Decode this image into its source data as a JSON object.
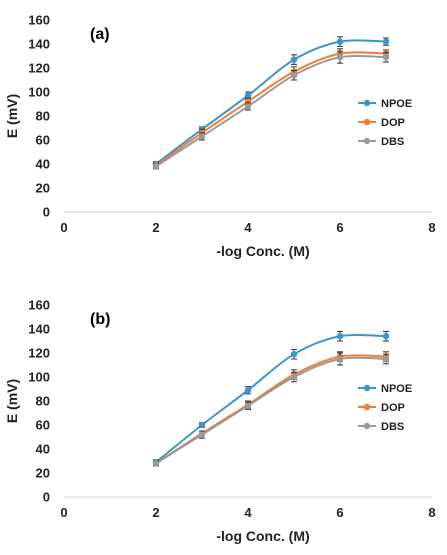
{
  "chart_data": [
    {
      "type": "line",
      "panel_label": "(a)",
      "xlabel": "-log Conc. (M)",
      "ylabel": "E (mV)",
      "xlim": [
        0,
        8
      ],
      "ylim": [
        0,
        160
      ],
      "x_ticks": [
        0,
        2,
        4,
        6,
        8
      ],
      "y_ticks": [
        0,
        20,
        40,
        60,
        80,
        100,
        120,
        140,
        160
      ],
      "grid": false,
      "legend_position": "right",
      "x": [
        2,
        3,
        4,
        5,
        6,
        7
      ],
      "series": [
        {
          "name": "NPOE",
          "color": "#3a95d0",
          "values": [
            40,
            69,
            97,
            127,
            142,
            142
          ],
          "errors": [
            2,
            2,
            3,
            4,
            4,
            3
          ]
        },
        {
          "name": "DOP",
          "color": "#f07d32",
          "values": [
            39,
            66,
            92,
            117,
            132,
            132
          ],
          "errors": [
            2,
            3,
            3,
            4,
            4,
            3
          ]
        },
        {
          "name": "DBS",
          "color": "#9a9a9a",
          "values": [
            38,
            63,
            88,
            114,
            129,
            129
          ],
          "errors": [
            2,
            3,
            3,
            4,
            5,
            4
          ]
        }
      ]
    },
    {
      "type": "line",
      "panel_label": "(b)",
      "xlabel": "-log Conc. (M)",
      "ylabel": "E (mV)",
      "xlim": [
        0,
        8
      ],
      "ylim": [
        0,
        160
      ],
      "x_ticks": [
        0,
        2,
        4,
        6,
        8
      ],
      "y_ticks": [
        0,
        20,
        40,
        60,
        80,
        100,
        120,
        140,
        160
      ],
      "grid": false,
      "legend_position": "right",
      "x": [
        2,
        3,
        4,
        5,
        6,
        7
      ],
      "series": [
        {
          "name": "NPOE",
          "color": "#3a95d0",
          "values": [
            29,
            60,
            89,
            119,
            134,
            134
          ],
          "errors": [
            2,
            2,
            3,
            4,
            4,
            4
          ]
        },
        {
          "name": "DOP",
          "color": "#f07d32",
          "values": [
            28,
            53,
            77,
            102,
            117,
            117
          ],
          "errors": [
            2,
            2,
            3,
            4,
            4,
            4
          ]
        },
        {
          "name": "DBS",
          "color": "#9a9a9a",
          "values": [
            28,
            52,
            76,
            100,
            115,
            115
          ],
          "errors": [
            2,
            3,
            3,
            4,
            5,
            4
          ]
        }
      ]
    }
  ]
}
